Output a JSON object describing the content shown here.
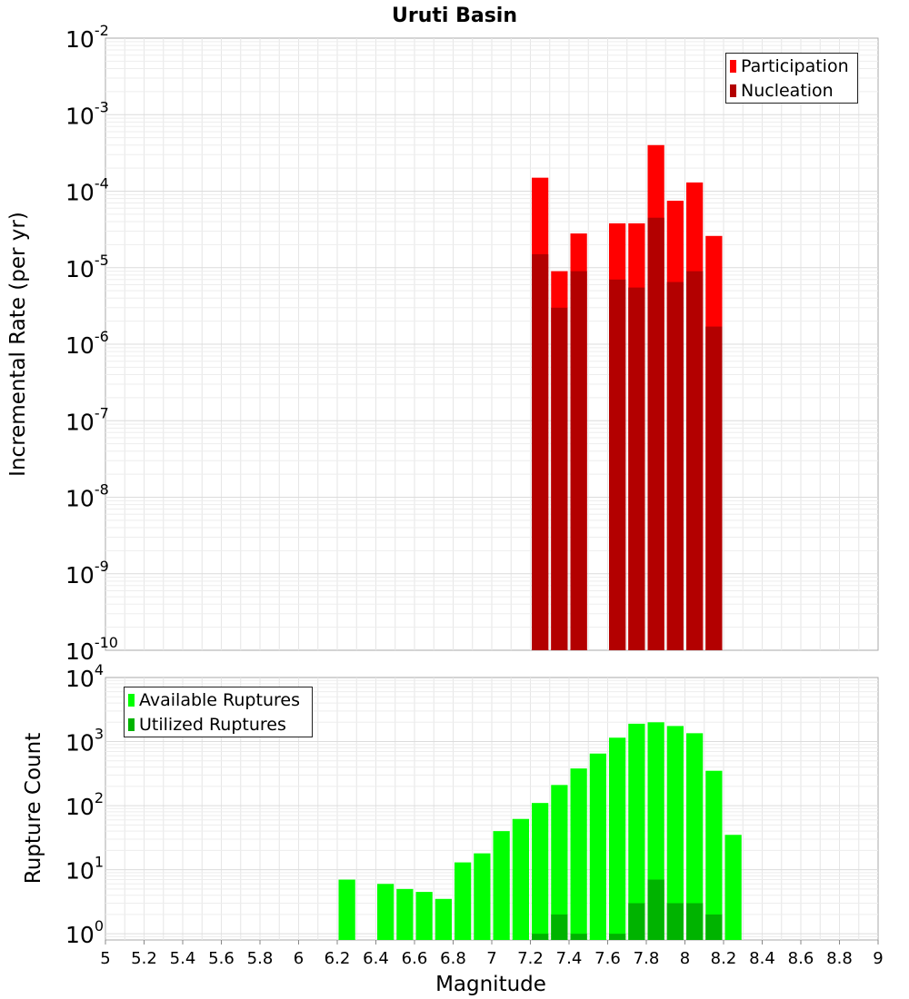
{
  "chart_data": [
    {
      "type": "bar",
      "title": "Uruti Basin",
      "xlabel": "",
      "ylabel": "Incremental Rate (per yr)",
      "y_scale": "log",
      "ylim": [
        1e-10,
        0.01
      ],
      "xlim": [
        5,
        9
      ],
      "y_ticks": [
        {
          "base": "10",
          "exp": "-10"
        },
        {
          "base": "10",
          "exp": "-9"
        },
        {
          "base": "10",
          "exp": "-8"
        },
        {
          "base": "10",
          "exp": "-7"
        },
        {
          "base": "10",
          "exp": "-6"
        },
        {
          "base": "10",
          "exp": "-5"
        },
        {
          "base": "10",
          "exp": "-4"
        },
        {
          "base": "10",
          "exp": "-3"
        },
        {
          "base": "10",
          "exp": "-2"
        }
      ],
      "grid": true,
      "legend_position": "top-right",
      "series": [
        {
          "name": "Participation",
          "color": "#ff0000",
          "x": [
            7.25,
            7.35,
            7.45,
            7.65,
            7.75,
            7.85,
            7.95,
            8.05,
            8.15
          ],
          "values": [
            0.00015,
            9e-06,
            2.8e-05,
            3.8e-05,
            3.8e-05,
            0.0004,
            7.5e-05,
            0.00013,
            2.6e-05
          ]
        },
        {
          "name": "Nucleation",
          "color": "#b30000",
          "x": [
            7.25,
            7.35,
            7.45,
            7.65,
            7.75,
            7.85,
            7.95,
            8.05,
            8.15
          ],
          "values": [
            1.5e-05,
            3e-06,
            9e-06,
            7e-06,
            5.5e-06,
            4.5e-05,
            6.5e-06,
            9e-06,
            1.7e-06
          ]
        }
      ]
    },
    {
      "type": "bar",
      "title": "",
      "xlabel": "Magnitude",
      "ylabel": "Rupture Count",
      "y_scale": "log",
      "ylim": [
        0.8,
        10000.0
      ],
      "xlim": [
        5,
        9
      ],
      "x_ticks": [
        "5",
        "5.2",
        "5.4",
        "5.6",
        "5.8",
        "6",
        "6.2",
        "6.4",
        "6.6",
        "6.8",
        "7",
        "7.2",
        "7.4",
        "7.6",
        "7.8",
        "8",
        "8.2",
        "8.4",
        "8.6",
        "8.8",
        "9"
      ],
      "y_ticks": [
        {
          "base": "10",
          "exp": "0"
        },
        {
          "base": "10",
          "exp": "1"
        },
        {
          "base": "10",
          "exp": "2"
        },
        {
          "base": "10",
          "exp": "3"
        },
        {
          "base": "10",
          "exp": "4"
        }
      ],
      "grid": true,
      "legend_position": "top-left",
      "series": [
        {
          "name": "Available Ruptures",
          "color": "#00ff00",
          "x": [
            6.25,
            6.45,
            6.55,
            6.65,
            6.75,
            6.85,
            6.95,
            7.05,
            7.15,
            7.25,
            7.35,
            7.45,
            7.55,
            7.65,
            7.75,
            7.85,
            7.95,
            8.05,
            8.15,
            8.25
          ],
          "values": [
            7,
            6,
            5,
            4.5,
            3.5,
            13,
            18,
            40,
            62,
            110,
            210,
            380,
            650,
            1150,
            1900,
            2000,
            1750,
            1350,
            350,
            35
          ]
        },
        {
          "name": "Utilized Ruptures",
          "color": "#00b300",
          "x": [
            7.25,
            7.35,
            7.45,
            7.65,
            7.75,
            7.85,
            7.95,
            8.05,
            8.15
          ],
          "values": [
            1,
            2,
            1,
            1,
            3,
            7,
            3,
            3,
            2
          ]
        }
      ]
    }
  ]
}
